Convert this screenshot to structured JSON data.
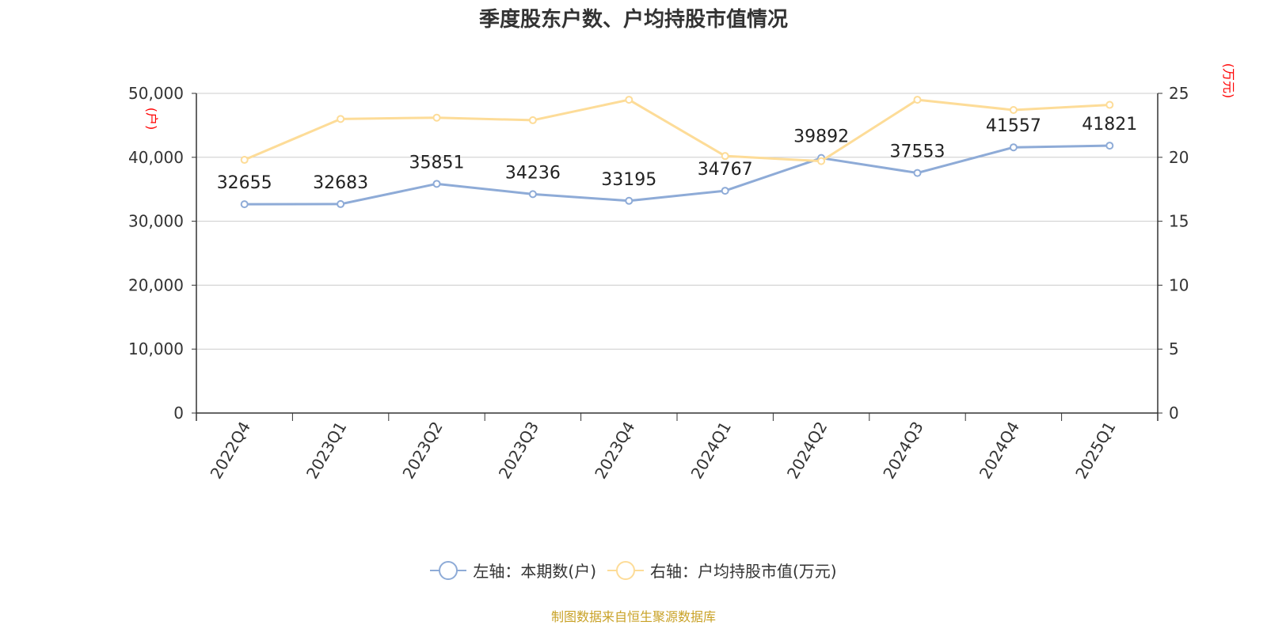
{
  "title": "季度股东户数、户均持股市值情况",
  "source": "制图数据来自恒生聚源数据库",
  "legend": {
    "left_label": "左轴：本期数(户)",
    "right_label": "右轴：户均持股市值(万元)"
  },
  "chart_data": {
    "type": "line",
    "categories": [
      "2022Q4",
      "2023Q1",
      "2023Q2",
      "2023Q3",
      "2023Q4",
      "2024Q1",
      "2024Q2",
      "2024Q3",
      "2024Q4",
      "2025Q1"
    ],
    "left_axis": {
      "unit": "(户)",
      "min": 0,
      "max": 50000,
      "ticks": [
        "0",
        "10,000",
        "20,000",
        "30,000",
        "40,000",
        "50,000"
      ]
    },
    "right_axis": {
      "unit": "(万元)",
      "min": 0,
      "max": 25,
      "ticks": [
        "0",
        "5",
        "10",
        "15",
        "20",
        "25"
      ]
    },
    "grid": true,
    "legend_position": "bottom",
    "series": [
      {
        "name": "左轴：本期数(户)",
        "axis": "left",
        "color": "#8eabd7",
        "values": [
          32655,
          32683,
          35851,
          34236,
          33195,
          34767,
          39892,
          37553,
          41557,
          41821
        ],
        "labels": [
          "32655",
          "32683",
          "35851",
          "34236",
          "33195",
          "34767",
          "39892",
          "37553",
          "41557",
          "41821"
        ]
      },
      {
        "name": "右轴：户均持股市值(万元)",
        "axis": "right",
        "color": "#fddc98",
        "values": [
          19.8,
          23.0,
          23.1,
          22.9,
          24.5,
          20.1,
          19.7,
          24.5,
          23.7,
          24.1
        ]
      }
    ]
  },
  "colors": {
    "axis": "#333333",
    "grid": "#cccccc",
    "unit_label": "#ff0000",
    "source": "#c9a227"
  }
}
